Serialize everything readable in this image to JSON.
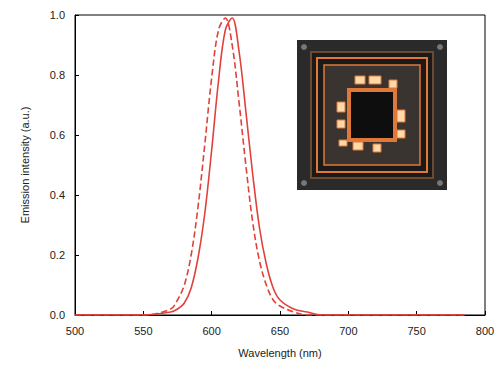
{
  "chart_data": {
    "type": "line",
    "x_label": "Wavelength (nm)",
    "y_label": "Emission intensity (a.u.)",
    "x": [
      500,
      550,
      570,
      575,
      580,
      585,
      590,
      595,
      600,
      605,
      610,
      615,
      620,
      625,
      630,
      635,
      640,
      645,
      650,
      660,
      670,
      680,
      700,
      750,
      785
    ],
    "series": [
      {
        "color": "#e2403a",
        "line_style": "solid",
        "values": [
          0,
          0,
          0.01,
          0.02,
          0.04,
          0.09,
          0.19,
          0.34,
          0.55,
          0.78,
          0.95,
          0.99,
          0.88,
          0.68,
          0.47,
          0.29,
          0.17,
          0.09,
          0.05,
          0.02,
          0.01,
          0,
          0,
          0,
          0
        ]
      },
      {
        "color": "#e2403a",
        "line_style": "dashed",
        "values": [
          0,
          0,
          0.02,
          0.05,
          0.1,
          0.2,
          0.36,
          0.57,
          0.79,
          0.95,
          0.99,
          0.9,
          0.71,
          0.5,
          0.31,
          0.18,
          0.1,
          0.05,
          0.03,
          0.01,
          0,
          0,
          0,
          0,
          0
        ]
      }
    ],
    "xlim": [
      500,
      800
    ],
    "xticks": [
      500,
      550,
      600,
      650,
      700,
      750,
      800
    ],
    "ylim": [
      0,
      1
    ],
    "yticks": [
      {
        "value": 0,
        "label": "0.0"
      },
      0.2,
      0.4,
      0.6,
      0.8,
      {
        "value": 1,
        "label": "1.0"
      }
    ],
    "grid": false
  }
}
